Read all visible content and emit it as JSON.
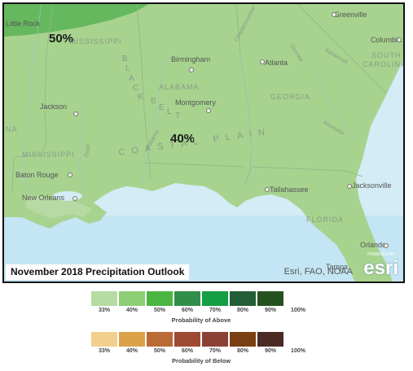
{
  "map": {
    "title": "November 2018 Precipitation Outlook",
    "attribution": "Esri, FAO, NOAA",
    "logo": {
      "powered": "POWERED BY",
      "word": "esri"
    },
    "probability_labels": {
      "fifty": "50%",
      "forty": "40%"
    },
    "states": {
      "mississippi_top": "MISSISSIPPI",
      "mississippi_mid": "MISSISSIPPI",
      "alabama": "ALABAMA",
      "georgia": "GEORGIA",
      "south_carolina": "SOUTH CAROLINA",
      "south": "SOUTH",
      "carolina": "CAROLINA",
      "florida": "FLORIDA",
      "louisiana_fragment": "NA"
    },
    "cities": {
      "little_rock": "Little Rock",
      "greenville": "Greenville",
      "columbia": "Columbia",
      "birmingham": "Birmingham",
      "atlanta": "Atlanta",
      "jackson": "Jackson",
      "montgomery": "Montgomery",
      "baton_rouge": "Baton Rouge",
      "new_orleans": "New Orleans",
      "tallahassee": "Tallahassee",
      "jacksonville": "Jacksonville",
      "orlando": "Orlando",
      "tampa": "Tampa"
    },
    "regions": {
      "black_belt": [
        "B",
        "L",
        "A",
        "C",
        "K",
        "B",
        "E",
        "L",
        "T"
      ],
      "coastal_plain": "COASTAL PLAIN"
    },
    "features": {
      "chattahoochee": "Chattahoochee",
      "oconee": "Oconee",
      "savannah": "Savannah",
      "altamaha": "Altamaha",
      "alabama_river": "Alabama",
      "pearl": "Pearl"
    },
    "colors": {
      "land_base": "#9fd08a",
      "land_50": "#5fb35a",
      "water": "#d9eef6",
      "water_deep": "#bfe3f2"
    }
  },
  "legend_above": {
    "title": "Probability of Above",
    "ticks": [
      "33%",
      "40%",
      "50%",
      "60%",
      "70%",
      "80%",
      "90%",
      "100%"
    ],
    "colors": [
      "#b5dca3",
      "#8ccf75",
      "#4bb543",
      "#2f8f4a",
      "#159e44",
      "#225e37",
      "#24521f"
    ]
  },
  "legend_below": {
    "title": "Probability of Below",
    "ticks": [
      "33%",
      "40%",
      "50%",
      "60%",
      "70%",
      "80%",
      "90%",
      "100%"
    ],
    "colors": [
      "#f1d08e",
      "#dba24a",
      "#b96a35",
      "#9c4b32",
      "#8c4137",
      "#7a3f12",
      "#4a2a23"
    ]
  }
}
